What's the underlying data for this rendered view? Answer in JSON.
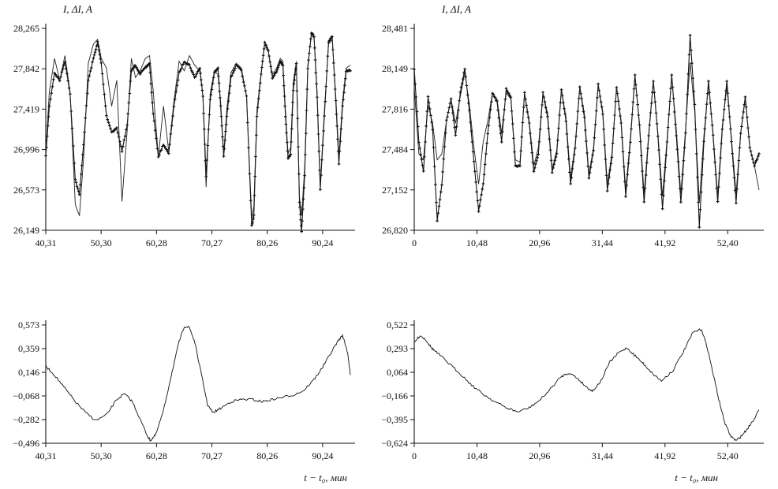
{
  "chart_data": [
    {
      "id": "top-left",
      "type": "scatter",
      "ylabel": "I, ΔI, A",
      "xlabel": "",
      "y_ticks": [
        "28,265",
        "27,842",
        "27,419",
        "26,996",
        "26,573",
        "26,149"
      ],
      "x_ticks": [
        "40,31",
        "50,30",
        "60,28",
        "70,27",
        "80,26",
        "90,24"
      ],
      "xlim": [
        40.31,
        99.0
      ],
      "ylim": [
        26.149,
        28.265
      ],
      "grid": false,
      "series": [
        {
          "style": "markers+line",
          "x": [
            40.31,
            41.0,
            42.0,
            43.0,
            44.0,
            45.0,
            46.0,
            46.8,
            47.6,
            48.5,
            49.5,
            50.3,
            51.0,
            52.0,
            53.0,
            54.0,
            55.0,
            56.0,
            56.8,
            57.6,
            58.5,
            59.5,
            60.3,
            61.0,
            62.0,
            63.0,
            64.0,
            65.0,
            66.0,
            67.0,
            68.0,
            69.0,
            70.0,
            70.6,
            71.2,
            72.0,
            72.8,
            73.5,
            74.0,
            74.6,
            75.2,
            76.0,
            77.0,
            78.0,
            79.0,
            80.0,
            80.4,
            81.0,
            81.8,
            82.5,
            83.2,
            84.0,
            84.8,
            85.5,
            86.0,
            86.5,
            87.0,
            87.5,
            88.0,
            88.6,
            89.2,
            89.6,
            90.2,
            90.8,
            91.5,
            92.0,
            92.6,
            93.2,
            94.0,
            94.8,
            95.5,
            96.2,
            96.8,
            97.5,
            98.2,
            99.0
          ],
          "y": [
            26.92,
            27.45,
            27.8,
            27.72,
            27.92,
            27.58,
            26.68,
            26.52,
            27.05,
            27.72,
            27.95,
            28.12,
            27.9,
            27.35,
            27.18,
            27.22,
            26.98,
            27.25,
            27.82,
            27.88,
            27.79,
            27.85,
            27.9,
            27.38,
            26.92,
            27.05,
            26.95,
            27.45,
            27.8,
            27.92,
            27.88,
            27.75,
            27.85,
            27.55,
            26.72,
            27.52,
            27.8,
            27.85,
            27.45,
            26.92,
            27.35,
            27.75,
            27.88,
            27.82,
            27.55,
            26.2,
            26.3,
            27.35,
            27.78,
            28.12,
            28.02,
            27.75,
            27.82,
            27.92,
            27.88,
            27.35,
            26.9,
            26.95,
            27.62,
            27.9,
            26.45,
            26.13,
            26.72,
            27.85,
            28.22,
            28.18,
            27.55,
            26.58,
            27.35,
            28.12,
            28.18,
            27.5,
            26.85,
            27.45,
            27.82,
            27.82
          ]
        },
        {
          "style": "thin-line",
          "x": [
            40.31,
            41.0,
            42.0,
            43.0,
            44.0,
            45.0,
            46.0,
            46.8,
            47.6,
            48.5,
            49.5,
            50.3,
            51.0,
            52.0,
            53.0,
            54.0,
            55.0,
            56.0,
            56.8,
            57.6,
            58.5,
            59.5,
            60.3,
            61.0,
            62.0,
            63.0,
            64.0,
            65.0,
            66.0,
            67.0,
            68.0,
            69.0,
            70.0,
            70.6,
            71.2,
            72.0,
            72.8,
            73.5,
            74.0,
            74.6,
            75.2,
            76.0,
            77.0,
            78.0,
            79.0,
            80.0,
            80.4,
            81.0,
            81.8,
            82.5,
            83.2,
            84.0,
            84.8,
            85.5,
            86.0,
            86.5,
            87.0,
            87.5,
            88.0,
            88.6,
            89.2,
            89.6,
            90.2,
            90.8,
            91.5,
            92.0,
            92.6,
            93.2,
            94.0,
            94.8,
            95.5,
            96.2,
            96.8,
            97.5,
            98.2,
            99.0
          ],
          "y": [
            26.95,
            27.6,
            27.95,
            27.72,
            27.98,
            27.6,
            26.42,
            26.3,
            26.9,
            27.9,
            28.1,
            28.15,
            27.95,
            27.85,
            27.45,
            27.72,
            26.45,
            27.2,
            27.95,
            27.75,
            27.82,
            27.95,
            27.98,
            27.62,
            26.92,
            27.45,
            26.98,
            27.5,
            27.92,
            27.82,
            27.98,
            27.88,
            27.82,
            27.55,
            26.6,
            27.58,
            27.82,
            27.78,
            27.5,
            26.95,
            27.42,
            27.8,
            27.9,
            27.85,
            27.55,
            26.28,
            26.4,
            27.4,
            27.8,
            28.1,
            28.02,
            27.78,
            27.85,
            27.95,
            27.92,
            27.4,
            26.95,
            27.02,
            27.7,
            27.92,
            26.5,
            26.3,
            26.8,
            27.88,
            28.2,
            28.18,
            27.6,
            26.62,
            27.4,
            28.1,
            28.15,
            27.55,
            26.92,
            27.5,
            27.85,
            27.88
          ]
        }
      ]
    },
    {
      "id": "top-right",
      "type": "scatter",
      "ylabel": "I, ΔI, A",
      "xlabel": "",
      "y_ticks": [
        "28,481",
        "28,149",
        "27,816",
        "27,484",
        "27,152",
        "26,820"
      ],
      "x_ticks": [
        "0",
        "10,48",
        "20,96",
        "31,44",
        "41,92",
        "52,40"
      ],
      "xlim": [
        0,
        60.0
      ],
      "ylim": [
        26.82,
        28.481
      ],
      "grid": false,
      "series": [
        {
          "style": "markers+line",
          "x": [
            0,
            0.8,
            1.6,
            2.4,
            3.2,
            4.0,
            4.8,
            5.6,
            6.4,
            7.2,
            8.0,
            8.8,
            9.6,
            10.4,
            11.2,
            12.0,
            12.8,
            13.6,
            14.4,
            15.2,
            16.0,
            16.8,
            17.6,
            18.4,
            19.2,
            20.0,
            20.8,
            21.6,
            22.4,
            23.2,
            24.0,
            24.8,
            25.6,
            26.4,
            27.2,
            28.0,
            28.8,
            29.6,
            30.4,
            31.2,
            32.0,
            32.8,
            33.6,
            34.4,
            35.2,
            36.0,
            36.8,
            37.6,
            38.4,
            39.2,
            40.0,
            40.8,
            41.6,
            42.4,
            43.2,
            44.0,
            44.8,
            45.6,
            46.4,
            47.2,
            48.0,
            48.8,
            49.6,
            50.4,
            51.2,
            52.0,
            52.8,
            53.6,
            54.4,
            55.2,
            56.0,
            56.8,
            57.6,
            58.4,
            59.2,
            60.0
          ],
          "y": [
            28.15,
            27.55,
            27.3,
            27.92,
            27.65,
            26.9,
            27.2,
            27.72,
            27.9,
            27.6,
            27.95,
            28.15,
            27.8,
            27.38,
            26.98,
            27.2,
            27.62,
            27.95,
            27.88,
            27.55,
            27.98,
            27.92,
            27.35,
            27.35,
            27.95,
            27.7,
            27.3,
            27.45,
            27.95,
            27.75,
            27.3,
            27.45,
            27.98,
            27.72,
            27.2,
            27.5,
            28.0,
            27.75,
            27.25,
            27.48,
            28.02,
            27.78,
            27.15,
            27.42,
            28.0,
            27.7,
            27.1,
            27.55,
            28.1,
            27.68,
            27.05,
            27.6,
            28.05,
            27.6,
            27.0,
            27.55,
            28.1,
            27.6,
            27.05,
            27.62,
            28.42,
            27.85,
            26.85,
            27.55,
            28.05,
            27.6,
            27.05,
            27.65,
            28.05,
            27.55,
            27.05,
            27.62,
            27.92,
            27.5,
            27.35,
            27.45
          ]
        },
        {
          "style": "thin-line",
          "x": [
            0,
            0.8,
            1.6,
            2.4,
            3.2,
            4.0,
            4.8,
            5.6,
            6.4,
            7.2,
            8.0,
            8.8,
            9.6,
            10.4,
            11.2,
            12.0,
            12.8,
            13.6,
            14.4,
            15.2,
            16.0,
            16.8,
            17.6,
            18.4,
            19.2,
            20.0,
            20.8,
            21.6,
            22.4,
            23.2,
            24.0,
            24.8,
            25.6,
            26.4,
            27.2,
            28.0,
            28.8,
            29.6,
            30.4,
            31.2,
            32.0,
            32.8,
            33.6,
            34.4,
            35.2,
            36.0,
            36.8,
            37.6,
            38.4,
            39.2,
            40.0,
            40.8,
            41.6,
            42.4,
            43.2,
            44.0,
            44.8,
            45.6,
            46.4,
            47.2,
            48.0,
            48.8,
            49.6,
            50.4,
            51.2,
            52.0,
            52.8,
            53.6,
            54.4,
            55.2,
            56.0,
            56.8,
            57.6,
            58.4,
            59.2,
            60.0
          ],
          "y": [
            28.0,
            27.45,
            27.4,
            27.85,
            27.7,
            27.4,
            27.45,
            27.72,
            27.9,
            27.7,
            27.92,
            28.12,
            27.85,
            27.5,
            27.2,
            27.55,
            27.72,
            27.95,
            27.9,
            27.62,
            27.95,
            27.9,
            27.4,
            27.38,
            27.95,
            27.72,
            27.35,
            27.5,
            27.95,
            27.78,
            27.32,
            27.48,
            27.98,
            27.75,
            27.25,
            27.52,
            28.0,
            27.78,
            27.28,
            27.5,
            28.02,
            27.8,
            27.2,
            27.45,
            28.0,
            27.72,
            27.15,
            27.58,
            28.08,
            27.7,
            27.12,
            27.62,
            28.05,
            27.62,
            27.1,
            27.58,
            28.08,
            27.65,
            27.12,
            27.65,
            28.2,
            27.8,
            27.05,
            27.6,
            28.02,
            27.62,
            27.1,
            27.68,
            28.0,
            27.58,
            27.12,
            27.62,
            27.9,
            27.5,
            27.35,
            27.15
          ]
        }
      ]
    },
    {
      "id": "bottom-left",
      "type": "line",
      "ylabel": "",
      "xlabel": "t − t₀, мин",
      "y_ticks": [
        "0,573",
        "0,359",
        "0,146",
        "−0,068",
        "−0,282",
        "−0,496"
      ],
      "x_ticks": [
        "40,31",
        "50,30",
        "60,28",
        "70,27",
        "80,26",
        "90,24"
      ],
      "xlim": [
        40.31,
        99.0
      ],
      "ylim": [
        -0.496,
        0.573
      ],
      "grid": false,
      "series": [
        {
          "style": "noisy-line",
          "x": [
            40.31,
            42.0,
            44.0,
            46.0,
            48.0,
            50.0,
            52.0,
            54.0,
            55.5,
            57.0,
            58.5,
            60.0,
            60.5,
            61.5,
            63.0,
            64.5,
            66.0,
            67.0,
            68.0,
            69.0,
            70.5,
            71.5,
            72.5,
            74.0,
            76.0,
            78.0,
            80.0,
            82.0,
            84.0,
            86.0,
            88.0,
            90.0,
            92.0,
            93.5,
            95.0,
            96.5,
            97.5,
            98.5,
            99.0
          ],
          "y": [
            0.2,
            0.12,
            0.0,
            -0.12,
            -0.22,
            -0.29,
            -0.24,
            -0.1,
            -0.05,
            -0.12,
            -0.28,
            -0.44,
            -0.47,
            -0.42,
            -0.2,
            0.12,
            0.42,
            0.56,
            0.55,
            0.42,
            0.08,
            -0.15,
            -0.22,
            -0.18,
            -0.12,
            -0.1,
            -0.1,
            -0.12,
            -0.1,
            -0.08,
            -0.06,
            -0.02,
            0.08,
            0.18,
            0.3,
            0.42,
            0.48,
            0.32,
            0.12
          ]
        }
      ]
    },
    {
      "id": "bottom-right",
      "type": "line",
      "ylabel": "",
      "xlabel": "t − t₀, мин",
      "y_ticks": [
        "0,522",
        "0,293",
        "0,064",
        "−0,166",
        "−0,395",
        "−0,624"
      ],
      "x_ticks": [
        "0",
        "10,48",
        "20,96",
        "31,44",
        "41,92",
        "52,40"
      ],
      "xlim": [
        0,
        60.0
      ],
      "ylim": [
        -0.624,
        0.522
      ],
      "grid": false,
      "series": [
        {
          "style": "noisy-line",
          "x": [
            0,
            1.0,
            2.0,
            3.0,
            4.0,
            6.0,
            8.0,
            10.0,
            12.0,
            14.0,
            16.0,
            18.0,
            20.0,
            22.0,
            24.0,
            25.5,
            27.0,
            28.5,
            30.0,
            31.0,
            32.5,
            34.0,
            35.5,
            37.0,
            38.5,
            40.0,
            41.5,
            43.0,
            45.0,
            47.0,
            48.5,
            50.0,
            51.0,
            52.0,
            53.0,
            54.0,
            55.0,
            56.0,
            57.0,
            58.0,
            59.0,
            60.0
          ],
          "y": [
            0.35,
            0.42,
            0.38,
            0.3,
            0.25,
            0.15,
            0.05,
            -0.06,
            -0.15,
            -0.22,
            -0.28,
            -0.32,
            -0.28,
            -0.2,
            -0.08,
            0.02,
            0.06,
            0.0,
            -0.08,
            -0.12,
            -0.02,
            0.16,
            0.25,
            0.3,
            0.22,
            0.14,
            0.05,
            -0.02,
            0.08,
            0.28,
            0.45,
            0.48,
            0.3,
            0.05,
            -0.2,
            -0.42,
            -0.55,
            -0.6,
            -0.55,
            -0.48,
            -0.4,
            -0.3
          ]
        }
      ]
    }
  ]
}
